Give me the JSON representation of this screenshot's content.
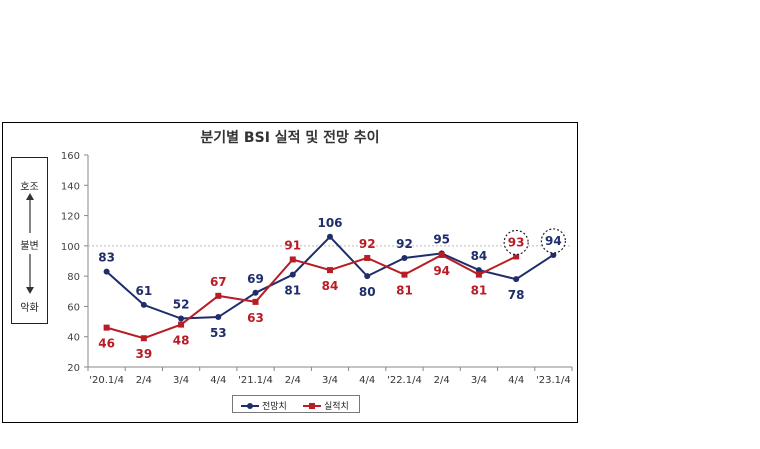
{
  "chart_data": {
    "type": "line",
    "title": "분기별 BSI 실적 및 전망 추이",
    "categories": [
      "'20.1/4",
      "2/4",
      "3/4",
      "4/4",
      "'21.1/4",
      "2/4",
      "3/4",
      "4/4",
      "'22.1/4",
      "2/4",
      "3/4",
      "4/4",
      "'23.1/4"
    ],
    "series": [
      {
        "name": "전망치",
        "color": "#1f2d6b",
        "marker": "circle",
        "values": [
          83,
          61,
          52,
          53,
          69,
          81,
          106,
          80,
          92,
          95,
          84,
          78,
          94
        ]
      },
      {
        "name": "실적치",
        "color": "#b81c24",
        "marker": "square",
        "values": [
          46,
          39,
          48,
          67,
          63,
          91,
          84,
          92,
          81,
          94,
          81,
          93,
          null
        ]
      }
    ],
    "yticks": [
      20,
      40,
      60,
      80,
      100,
      120,
      140,
      160
    ],
    "ylim": [
      20,
      160
    ],
    "reference_line": 100,
    "highlighted": [
      "실적치:11",
      "전망치:12"
    ],
    "side_scale": {
      "top": "호조",
      "middle": "불변",
      "bottom": "악화"
    },
    "legend_position": "bottom"
  }
}
